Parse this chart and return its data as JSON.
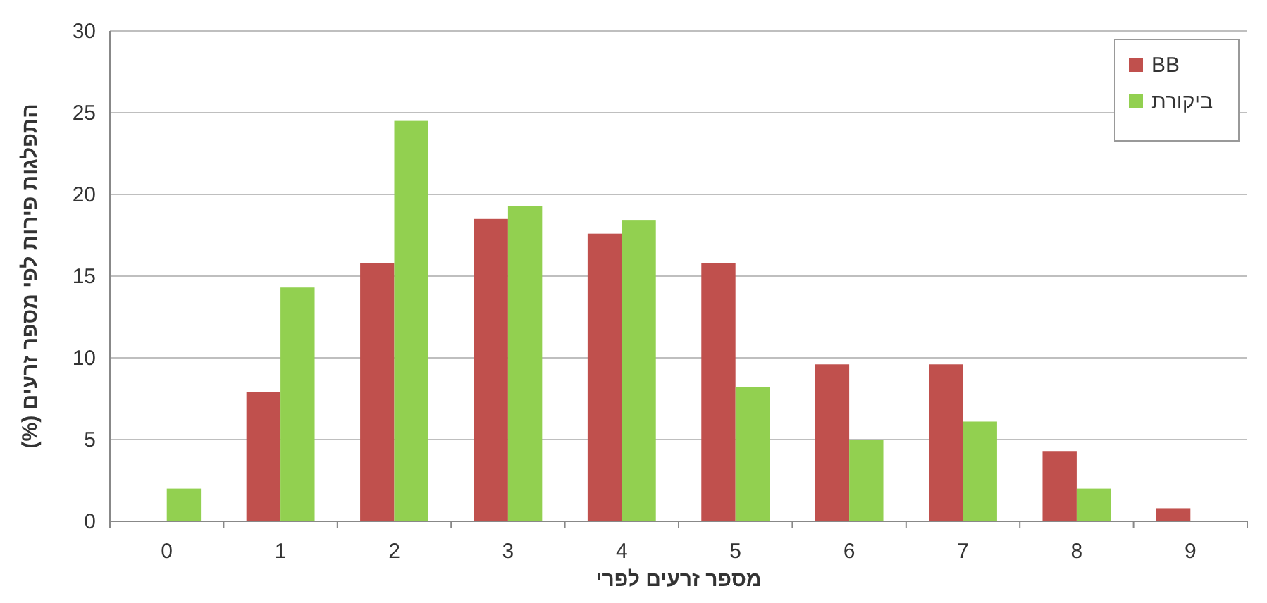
{
  "chart_data": {
    "type": "bar",
    "xlabel": "מספר זרעים לפרי",
    "ylabel": "התפלגות פירות לפי מספר זרעים (%)",
    "categories": [
      "0",
      "1",
      "2",
      "3",
      "4",
      "5",
      "6",
      "7",
      "8",
      "9"
    ],
    "series": [
      {
        "name": "BB",
        "color": "#c0504d",
        "values": [
          0,
          7.9,
          15.8,
          18.5,
          17.6,
          15.8,
          9.6,
          9.6,
          4.3,
          0.8
        ]
      },
      {
        "name": "ביקורת",
        "color": "#92d050",
        "values": [
          2.0,
          14.3,
          24.5,
          19.3,
          18.4,
          8.2,
          5.0,
          6.1,
          2.0,
          0
        ]
      }
    ],
    "ylim": [
      0,
      30
    ],
    "yticks": [
      0,
      5,
      10,
      15,
      20,
      25,
      30
    ],
    "grid": "y",
    "legend": "top right"
  }
}
